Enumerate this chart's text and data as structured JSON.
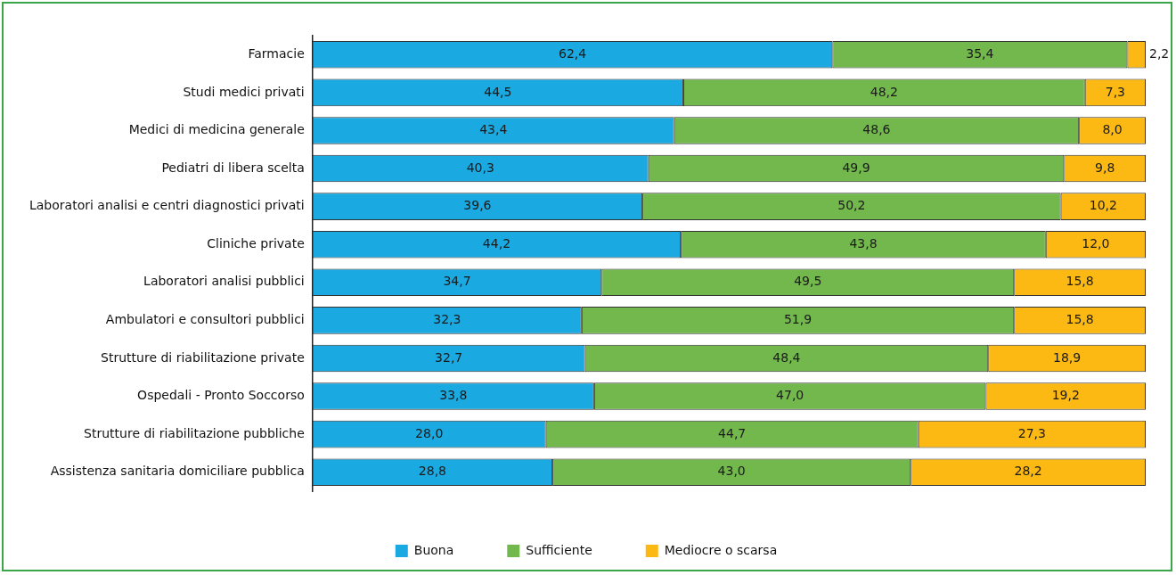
{
  "chart_data": {
    "type": "bar",
    "orientation": "horizontal",
    "stacked": true,
    "categories": [
      "Farmacie",
      "Studi medici privati",
      "Medici di medicina generale",
      "Pediatri di libera scelta",
      "Laboratori analisi e centri diagnostici privati",
      "Cliniche private",
      "Laboratori analisi pubblici",
      "Ambulatori e consultori pubblici",
      "Strutture di riabilitazione private",
      "Ospedali - Pronto Soccorso",
      "Strutture di riabilitazione pubbliche",
      "Assistenza sanitaria domiciliare pubblica"
    ],
    "series": [
      {
        "name": "Buona",
        "color": "#1ba9e1",
        "values": [
          62.4,
          44.5,
          43.4,
          40.3,
          39.6,
          44.2,
          34.7,
          32.3,
          32.7,
          33.8,
          28.0,
          28.8
        ],
        "value_labels": [
          "62,4",
          "44,5",
          "43,4",
          "40,3",
          "39,6",
          "44,2",
          "34,7",
          "32,3",
          "32,7",
          "33,8",
          "28,0",
          "28,8"
        ]
      },
      {
        "name": "Sufficiente",
        "color": "#72b84c",
        "values": [
          35.4,
          48.2,
          48.6,
          49.9,
          50.2,
          43.8,
          49.5,
          51.9,
          48.4,
          47.0,
          44.7,
          43.0
        ],
        "value_labels": [
          "35,4",
          "48,2",
          "48,6",
          "49,9",
          "50,2",
          "43,8",
          "49,5",
          "51,9",
          "48,4",
          "47,0",
          "44,7",
          "43,0"
        ]
      },
      {
        "name": "Mediocre o scarsa",
        "color": "#fdb913",
        "values": [
          2.2,
          7.3,
          8.0,
          9.8,
          10.2,
          12.0,
          15.8,
          15.8,
          18.9,
          19.2,
          27.3,
          28.2
        ],
        "value_labels": [
          "2,2",
          "7,3",
          "8,0",
          "9,8",
          "10,2",
          "12,0",
          "15,8",
          "15,8",
          "18,9",
          "19,2",
          "27,3",
          "28,2"
        ]
      }
    ],
    "xlim": [
      0,
      100
    ],
    "tick_labels": "y",
    "legend": "bottom"
  }
}
